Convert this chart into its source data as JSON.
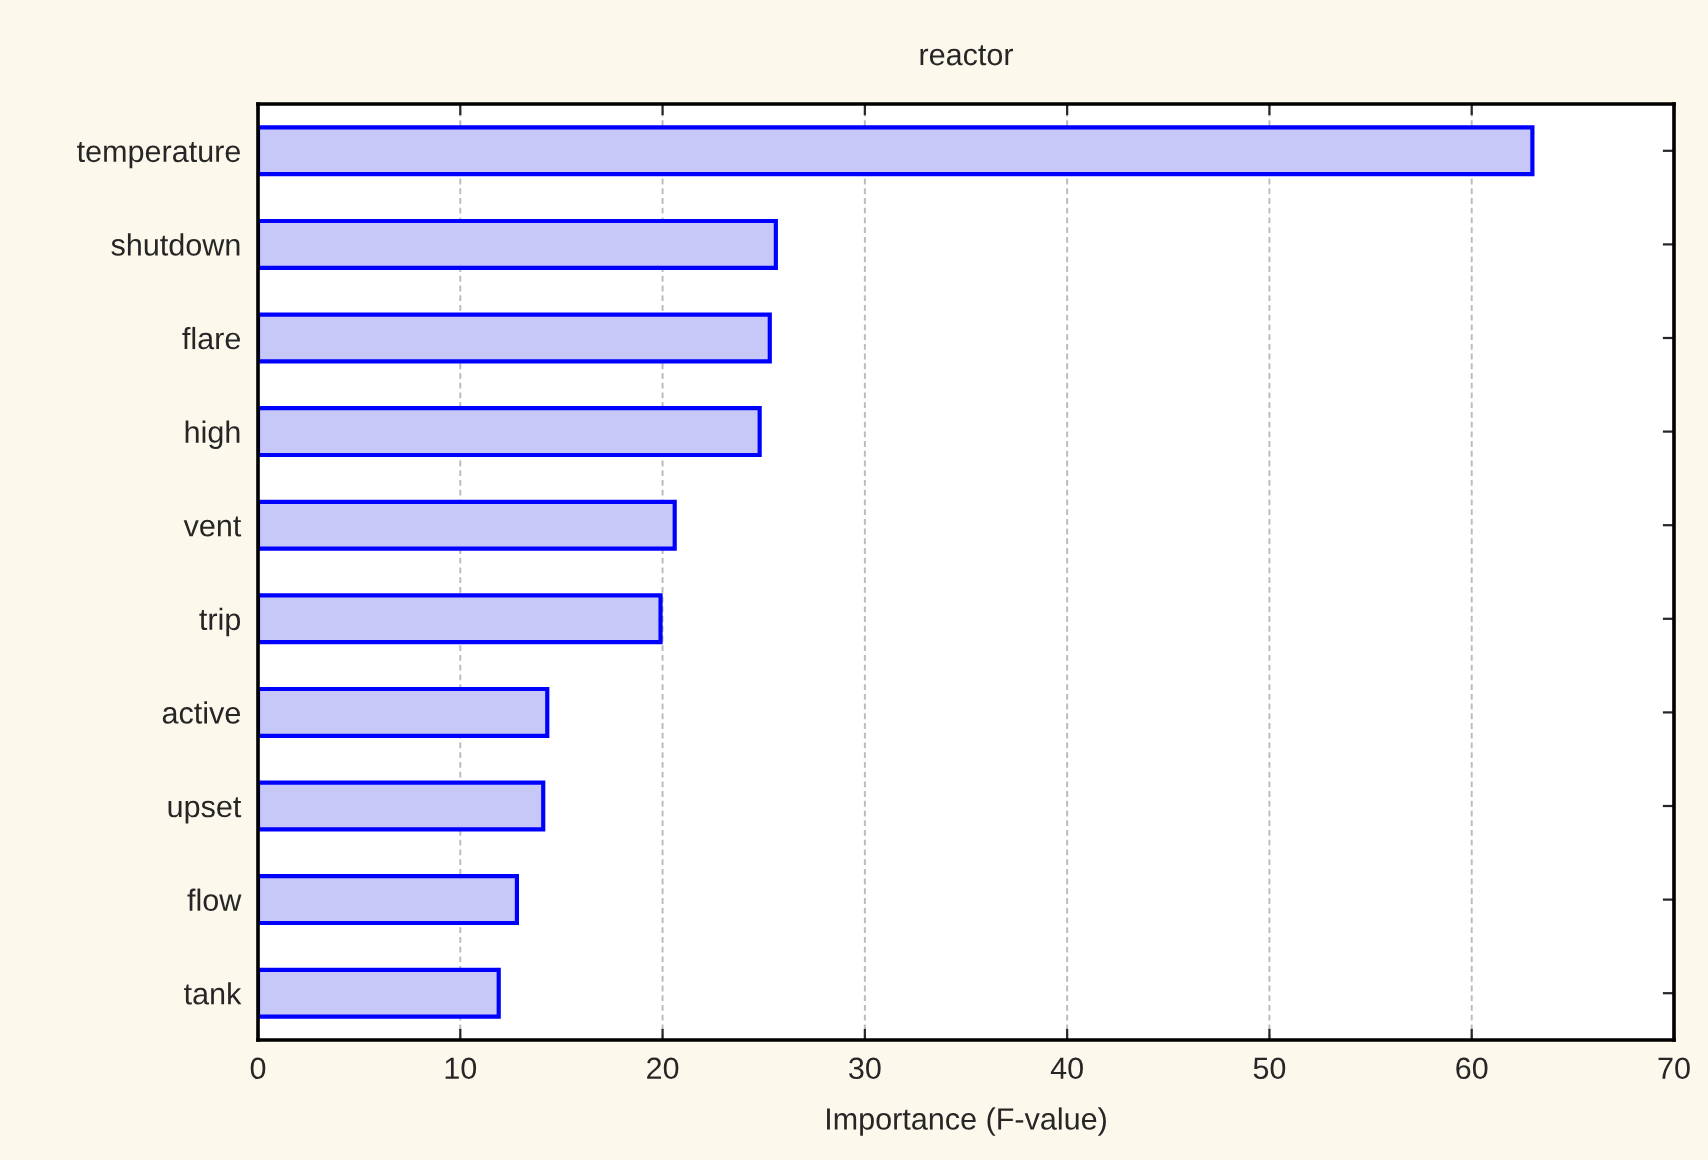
{
  "chart_data": {
    "type": "bar",
    "orientation": "horizontal",
    "title": "reactor",
    "xlabel": "Importance (F-value)",
    "categories": [
      "temperature",
      "shutdown",
      "flare",
      "high",
      "vent",
      "trip",
      "active",
      "upset",
      "flow",
      "tank"
    ],
    "series": [
      {
        "color": "#c8c8f8",
        "values": [
          63.0,
          25.6,
          25.3,
          24.8,
          20.6,
          19.9,
          14.3,
          14.1,
          12.8,
          11.9
        ]
      }
    ],
    "xlim": [
      0,
      70
    ],
    "xticks": [
      0,
      10,
      20,
      30,
      40,
      50,
      60,
      70
    ],
    "grid": "x",
    "legend": false
  }
}
